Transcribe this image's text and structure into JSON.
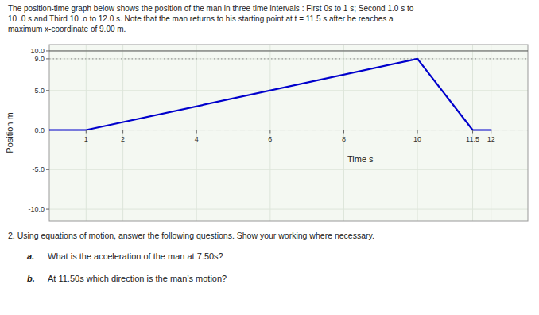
{
  "chart_data": {
    "type": "line",
    "title": "The position-time graph below shows the position of the man in three time intervals : First 0s to 1 s;  Second 1.0 s to\n10 .0 s and Third 10 .o to 12.0 s.  Note that the man returns to his starting point at t = 11.5 s after he reaches a\nmaximum x-coordinate of 9.00 m.",
    "x_label": "Time s",
    "y_label": "Position m",
    "series": [
      {
        "name": "Position",
        "color": "#0000cc",
        "x": [
          0,
          1,
          10,
          11.5,
          12
        ],
        "values": [
          0,
          0,
          9,
          0,
          0
        ]
      }
    ],
    "reference_lines": [
      {
        "value": 0.0,
        "line_style": "dashed",
        "color": "#333333"
      },
      {
        "value": 9.0,
        "line_style": "dotted",
        "color": "#888888"
      },
      {
        "value": 10.0,
        "line_style": "solid",
        "color": "#555555"
      }
    ],
    "xlim": [
      0.0,
      13.0
    ],
    "ylim": [
      -11.5,
      10.8
    ],
    "xticks": [
      1,
      2,
      4,
      6,
      8,
      10,
      11.5,
      12
    ],
    "yticks": [
      {
        "value": -10.0,
        "label": "-10.0"
      },
      {
        "value": -5.0,
        "label": "-5.0"
      },
      {
        "value": 0.0,
        "label": "0.0"
      },
      {
        "value": 5.0,
        "label": "5.0"
      },
      {
        "value": 9.0,
        "label": "9.0"
      },
      {
        "value": 10.0,
        "label": "10.0"
      }
    ],
    "grid": true,
    "question": "2. Using equations of motion, answer the following questions.  Show your working where necessary.",
    "questions": [
      {
        "label": "a.",
        "text": "What is the acceleration of the man at 7.50s?"
      },
      {
        "label": "b.",
        "text": "At 11.50s which direction is the man’s motion?"
      }
    ]
  }
}
